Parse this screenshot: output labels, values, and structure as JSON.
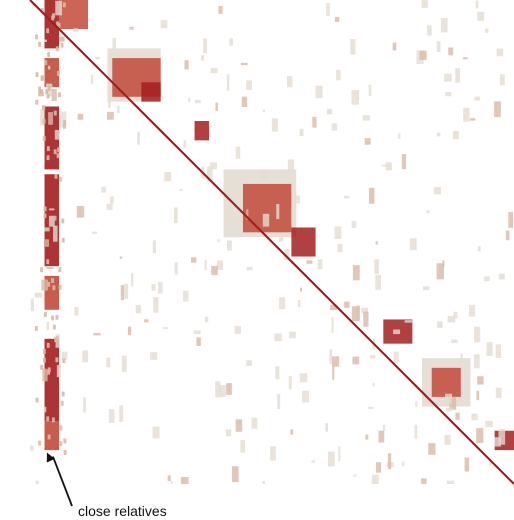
{
  "chart_data": {
    "type": "heatmap",
    "title": "",
    "xlabel": "",
    "ylabel": "",
    "colors": {
      "background": "#ffffff",
      "strong": "#a31e1e",
      "medium": "#c24a3a",
      "faint": "#e3dcd2",
      "speckle": "#d9b9a8",
      "annotation": "#111111"
    },
    "diagonal": {
      "range": [
        0,
        1
      ],
      "color_key": "strong"
    },
    "blocks": [
      {
        "x": [
          0.06,
          0.12
        ],
        "y": [
          0.0,
          0.06
        ],
        "color_key": "medium"
      },
      {
        "x": [
          0.16,
          0.27
        ],
        "y": [
          0.1,
          0.21
        ],
        "color_key": "faint"
      },
      {
        "x": [
          0.17,
          0.27
        ],
        "y": [
          0.12,
          0.2
        ],
        "color_key": "medium"
      },
      {
        "x": [
          0.23,
          0.27
        ],
        "y": [
          0.17,
          0.21
        ],
        "color_key": "strong"
      },
      {
        "x": [
          0.34,
          0.37
        ],
        "y": [
          0.25,
          0.29
        ],
        "color_key": "strong"
      },
      {
        "x": [
          0.4,
          0.55
        ],
        "y": [
          0.35,
          0.49
        ],
        "color_key": "faint"
      },
      {
        "x": [
          0.44,
          0.54
        ],
        "y": [
          0.38,
          0.48
        ],
        "color_key": "medium"
      },
      {
        "x": [
          0.54,
          0.59
        ],
        "y": [
          0.47,
          0.53
        ],
        "color_key": "strong"
      },
      {
        "x": [
          0.73,
          0.79
        ],
        "y": [
          0.66,
          0.71
        ],
        "color_key": "strong"
      },
      {
        "x": [
          0.81,
          0.91
        ],
        "y": [
          0.74,
          0.84
        ],
        "color_key": "faint"
      },
      {
        "x": [
          0.83,
          0.89
        ],
        "y": [
          0.76,
          0.82
        ],
        "color_key": "medium"
      },
      {
        "x": [
          0.96,
          1.0
        ],
        "y": [
          0.89,
          0.93
        ],
        "color_key": "strong"
      }
    ],
    "column_band": {
      "x": [
        0.03,
        0.06
      ],
      "segments": [
        {
          "y": [
            0.0,
            0.1
          ],
          "color_key": "strong"
        },
        {
          "y": [
            0.12,
            0.18
          ],
          "color_key": "medium"
        },
        {
          "y": [
            0.22,
            0.35
          ],
          "color_key": "strong"
        },
        {
          "y": [
            0.36,
            0.55
          ],
          "color_key": "strong"
        },
        {
          "y": [
            0.57,
            0.64
          ],
          "color_key": "medium"
        },
        {
          "y": [
            0.7,
            0.87
          ],
          "color_key": "strong"
        },
        {
          "y": [
            0.87,
            0.93
          ],
          "color_key": "medium"
        }
      ]
    },
    "annotations": [
      {
        "text": "close relatives",
        "arrow_to": [
          0.035,
          0.935
        ]
      }
    ]
  }
}
